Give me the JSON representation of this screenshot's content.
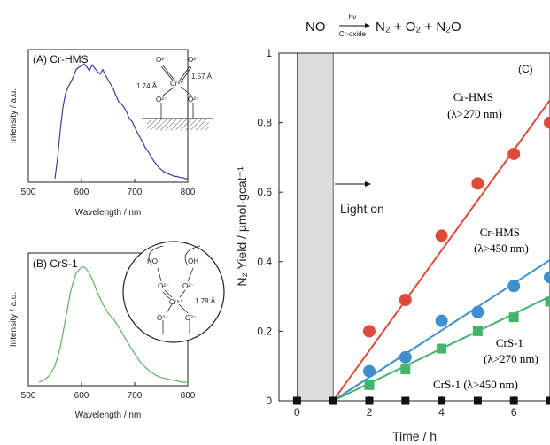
{
  "reaction": {
    "reactant": "NO",
    "arrow_top": "hv",
    "arrow_bottom": "Cr-oxide",
    "products": "N₂ + O₂ + N₂O"
  },
  "structure_A": {
    "labels": [
      "O²⁻",
      "O²⁻",
      "Cr⁶⁺",
      "O²⁻",
      "O²⁻"
    ],
    "bond_left": "1.74 Å",
    "bond_right": "1.57 Å"
  },
  "structure_B": {
    "labels": [
      "HO",
      "OH",
      "O²⁻",
      "O²⁻",
      "Cr⁶⁺",
      "O²⁻",
      "O²⁻"
    ],
    "bond": "1.78 Å"
  },
  "chart_data": [
    {
      "panel": "(A) Cr-HMS",
      "type": "line",
      "xlabel": "Wavelength / nm",
      "ylabel": "Intensity / a.u.",
      "xlim": [
        500,
        800
      ],
      "xticks": [
        500,
        600,
        700,
        800
      ],
      "color": "#3a3f9a",
      "series": [
        {
          "x": [
            550,
            555,
            560,
            565,
            570,
            575,
            580,
            585,
            590,
            595,
            600,
            605,
            610,
            615,
            620,
            625,
            630,
            635,
            640,
            645,
            650,
            655,
            660,
            665,
            670,
            675,
            680,
            685,
            690,
            695,
            700,
            705,
            710,
            715,
            720,
            725,
            730,
            735,
            740,
            745,
            750,
            755,
            760,
            765,
            770,
            775,
            780,
            785,
            790,
            795,
            800
          ],
          "y": [
            0.0,
            0.18,
            0.42,
            0.62,
            0.74,
            0.8,
            0.84,
            0.89,
            0.95,
            0.97,
            0.98,
            1.0,
            0.97,
            0.94,
            0.99,
            0.96,
            0.93,
            0.91,
            0.95,
            0.9,
            0.86,
            0.82,
            0.78,
            0.72,
            0.67,
            0.65,
            0.62,
            0.58,
            0.52,
            0.5,
            0.45,
            0.4,
            0.36,
            0.32,
            0.27,
            0.24,
            0.2,
            0.16,
            0.13,
            0.1,
            0.08,
            0.06,
            0.05,
            0.04,
            0.03,
            0.02,
            0.02,
            0.01,
            0.01,
            0.0,
            0.0
          ]
        }
      ]
    },
    {
      "panel": "(B) CrS-1",
      "type": "line",
      "xlabel": "Wavelength / nm",
      "ylabel": "Intensity / a.u.",
      "xlim": [
        500,
        800
      ],
      "xticks": [
        500,
        600,
        700,
        800
      ],
      "color": "#5db35d",
      "series": [
        {
          "x": [
            520,
            530,
            540,
            550,
            560,
            570,
            580,
            590,
            600,
            605,
            610,
            620,
            630,
            640,
            650,
            660,
            670,
            680,
            690,
            700,
            710,
            720,
            730,
            740,
            750,
            760,
            770,
            780,
            790,
            800
          ],
          "y": [
            0.0,
            0.02,
            0.06,
            0.14,
            0.3,
            0.55,
            0.8,
            0.95,
            1.0,
            1.0,
            0.98,
            0.9,
            0.78,
            0.68,
            0.6,
            0.55,
            0.48,
            0.4,
            0.32,
            0.25,
            0.18,
            0.13,
            0.09,
            0.06,
            0.04,
            0.03,
            0.02,
            0.01,
            0.0,
            0.0
          ]
        }
      ]
    },
    {
      "panel": "(C)",
      "type": "scatter",
      "xlabel": "Time / h",
      "ylabel": "N₂ Yield / µmol·gcat⁻¹",
      "xlim": [
        -0.5,
        7
      ],
      "ylim": [
        0,
        1
      ],
      "xticks": [
        0,
        2,
        4,
        6
      ],
      "yticks": [
        0,
        0.2,
        0.4,
        0.6,
        0.8,
        1
      ],
      "ytick_labels": [
        "0",
        "0.2",
        "0.4",
        "0.6",
        "0.8",
        "1"
      ],
      "dark_region": [
        0,
        1
      ],
      "annotation": "Light on",
      "series": [
        {
          "name": "Cr-HMS (λ>270 nm)",
          "marker": "circle",
          "color": "#e04a3a",
          "x": [
            1,
            2,
            3,
            4,
            5,
            6,
            7
          ],
          "y": [
            0.0,
            0.2,
            0.29,
            0.475,
            0.625,
            0.71,
            0.8
          ],
          "fit": [
            [
              1,
              0.0
            ],
            [
              7,
              0.865
            ]
          ]
        },
        {
          "name": "Cr-HMS (λ>450 nm)",
          "marker": "circle",
          "color": "#3f8fcf",
          "x": [
            1,
            2,
            3,
            4,
            5,
            6,
            7
          ],
          "y": [
            0.0,
            0.085,
            0.125,
            0.23,
            0.255,
            0.33,
            0.355
          ],
          "fit": [
            [
              1,
              0.0
            ],
            [
              7,
              0.405
            ]
          ]
        },
        {
          "name": "CrS-1 (λ>270 nm)",
          "marker": "square",
          "color": "#45b36a",
          "x": [
            1,
            2,
            3,
            4,
            5,
            6,
            7
          ],
          "y": [
            0.0,
            0.045,
            0.09,
            0.15,
            0.2,
            0.24,
            0.285
          ],
          "fit": [
            [
              1,
              0.0
            ],
            [
              7,
              0.3
            ]
          ]
        },
        {
          "name": "CrS-1 (λ>450 nm)",
          "marker": "square",
          "color": "#111111",
          "x": [
            0,
            1,
            2,
            3,
            4,
            5,
            6,
            7
          ],
          "y": [
            0,
            0,
            0,
            0,
            0,
            0,
            0,
            0
          ],
          "fit": null
        }
      ],
      "labels": [
        {
          "line1": "Cr-HMS",
          "line2": "(λ>270 nm)",
          "color": "#e04a3a"
        },
        {
          "line1": "Cr-HMS",
          "line2": "(λ>450 nm)",
          "color": "#3f8fcf"
        },
        {
          "line1": "CrS-1",
          "line2": "(λ>270 nm)",
          "color": "#45b36a"
        },
        {
          "line1": "CrS-1 (λ>450 nm)",
          "line2": "",
          "color": "#111111"
        }
      ]
    }
  ]
}
